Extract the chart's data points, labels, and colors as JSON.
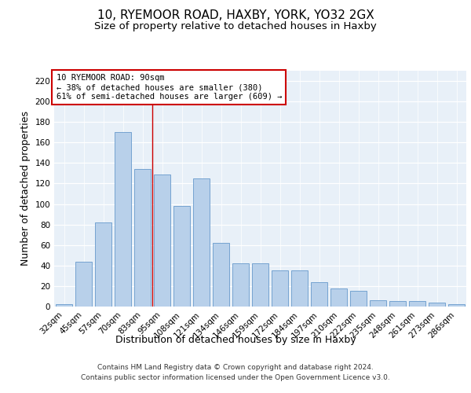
{
  "title1": "10, RYEMOOR ROAD, HAXBY, YORK, YO32 2GX",
  "title2": "Size of property relative to detached houses in Haxby",
  "xlabel": "Distribution of detached houses by size in Haxby",
  "ylabel": "Number of detached properties",
  "categories": [
    "32sqm",
    "45sqm",
    "57sqm",
    "70sqm",
    "83sqm",
    "95sqm",
    "108sqm",
    "121sqm",
    "134sqm",
    "146sqm",
    "159sqm",
    "172sqm",
    "184sqm",
    "197sqm",
    "210sqm",
    "222sqm",
    "235sqm",
    "248sqm",
    "261sqm",
    "273sqm",
    "286sqm"
  ],
  "values": [
    2,
    44,
    82,
    170,
    134,
    129,
    98,
    125,
    62,
    42,
    42,
    35,
    35,
    24,
    18,
    15,
    6,
    5,
    5,
    4,
    2
  ],
  "bar_color": "#b8d0ea",
  "bar_edge_color": "#6699cc",
  "vline_x": 4.5,
  "vline_color": "#cc0000",
  "annotation_title": "10 RYEMOOR ROAD: 90sqm",
  "annotation_line1": "← 38% of detached houses are smaller (380)",
  "annotation_line2": "61% of semi-detached houses are larger (609) →",
  "annotation_box_color": "#ffffff",
  "annotation_box_edge": "#cc0000",
  "ylim": [
    0,
    230
  ],
  "yticks": [
    0,
    20,
    40,
    60,
    80,
    100,
    120,
    140,
    160,
    180,
    200,
    220
  ],
  "bg_color": "#e8f0f8",
  "footer1": "Contains HM Land Registry data © Crown copyright and database right 2024.",
  "footer2": "Contains public sector information licensed under the Open Government Licence v3.0.",
  "title1_fontsize": 11,
  "title2_fontsize": 9.5,
  "axis_label_fontsize": 9,
  "tick_fontsize": 7.5,
  "footer_fontsize": 6.5
}
